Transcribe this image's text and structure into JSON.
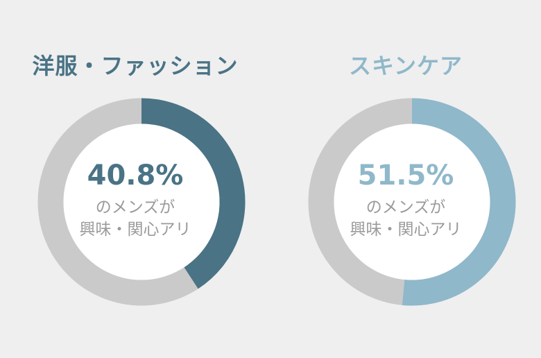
{
  "chart_data": [
    {
      "type": "pie",
      "title": "洋服・ファッション",
      "value": 40.8,
      "value_label": "40.8%",
      "caption_lines": [
        "のメンズが",
        "興味・関心アリ"
      ],
      "colors": {
        "accent": "#4a7385",
        "track": "#cacaca",
        "title": "#4a7385"
      }
    },
    {
      "type": "pie",
      "title": "スキンケア",
      "value": 51.5,
      "value_label": "51.5%",
      "caption_lines": [
        "のメンズが",
        "興味・関心アリ"
      ],
      "colors": {
        "accent": "#8fb8ca",
        "track": "#cacaca",
        "title": "#8fb8ca"
      }
    }
  ]
}
